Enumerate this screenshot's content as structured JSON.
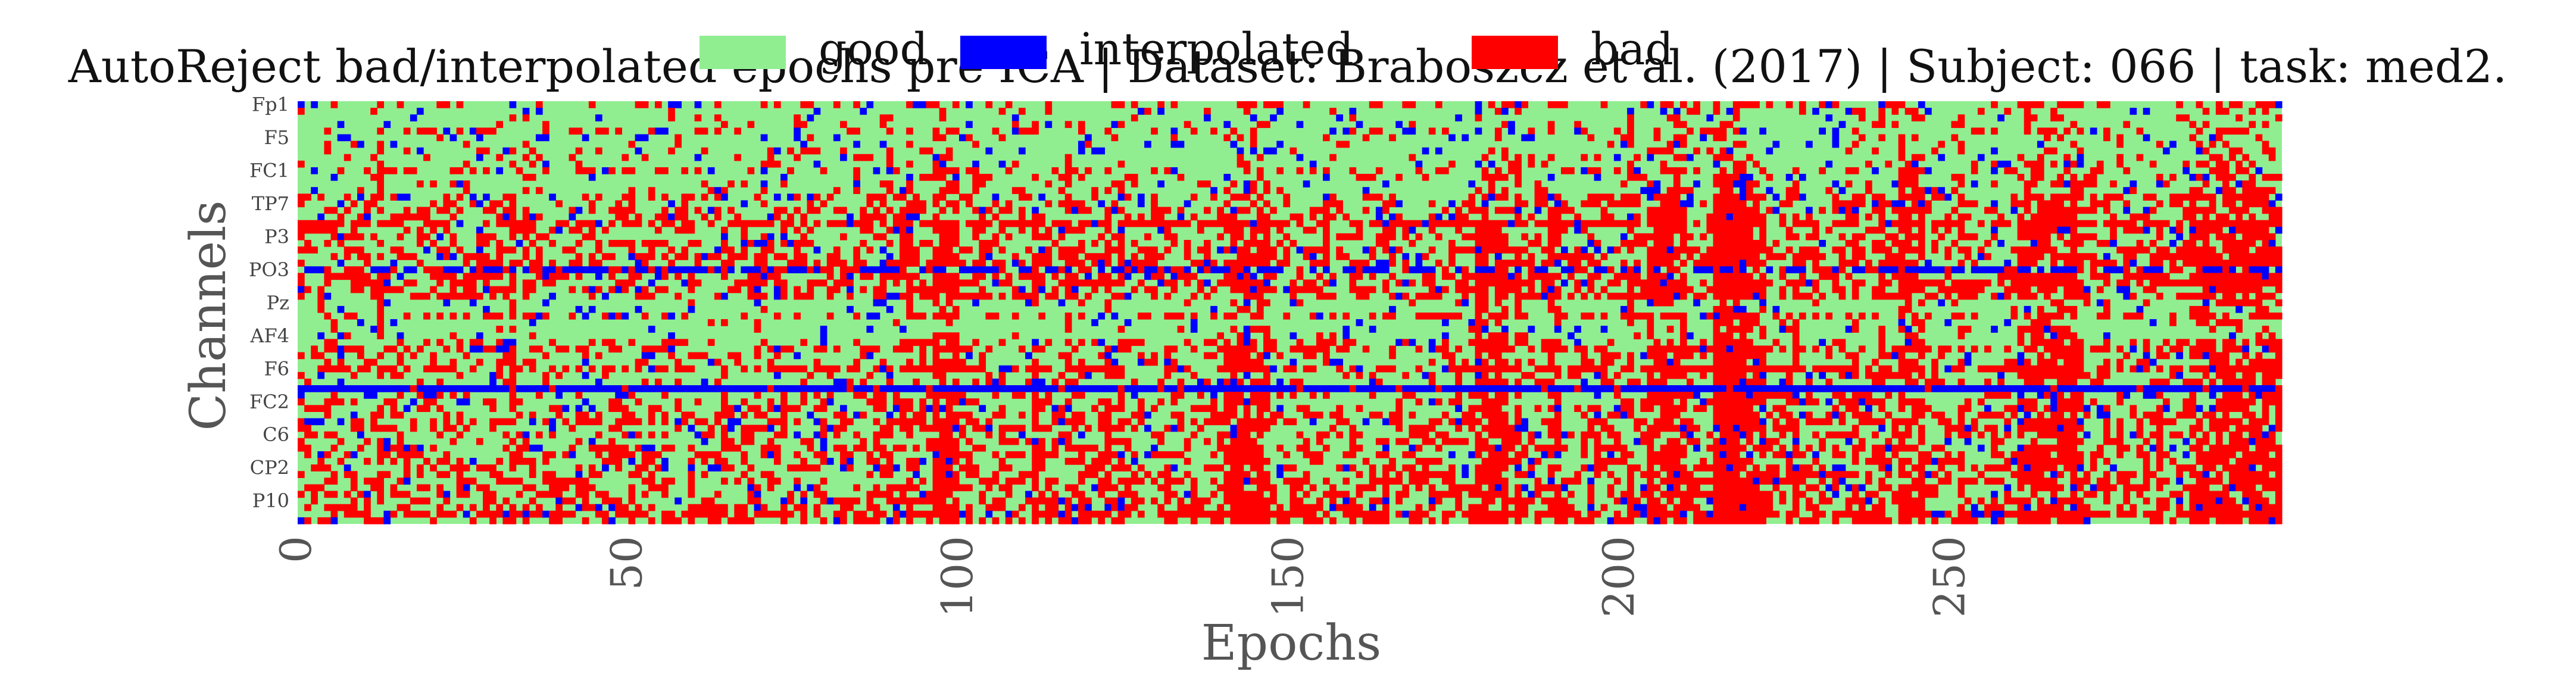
{
  "chart_data": {
    "type": "heatmap",
    "title": "AutoReject bad/interpolated epochs pre ICA | Dataset: Braboszcz et al. (2017) | Subject: 066 | task: med2.",
    "xlabel": "Epochs",
    "ylabel": "Channels",
    "x_range": [
      0,
      300
    ],
    "x_ticks": [
      0,
      50,
      100,
      150,
      200,
      250
    ],
    "y_tick_labels": [
      "Fp1",
      "F5",
      "FC1",
      "TP7",
      "P3",
      "PO3",
      "Pz",
      "AF4",
      "F6",
      "FC2",
      "C6",
      "CP2",
      "P10"
    ],
    "n_channels": 64,
    "n_epochs": 300,
    "legend": {
      "placement": "top-center",
      "entries": [
        {
          "label": "good",
          "color": "#90ee90"
        },
        {
          "label": "interpolated",
          "color": "#0000ff"
        },
        {
          "label": "bad",
          "color": "#ff0000"
        }
      ]
    },
    "category_colors": {
      "good": "#90ee90",
      "interpolated": "#0000ff",
      "bad": "#ff0000"
    },
    "grid": false,
    "dense_bad_epochs": [
      [
        96,
        100
      ],
      [
        140,
        147
      ],
      [
        178,
        183
      ],
      [
        204,
        210
      ],
      [
        214,
        222
      ],
      [
        242,
        246
      ],
      [
        260,
        270
      ],
      [
        286,
        300
      ]
    ],
    "constant_rows": [
      {
        "channel_index": 43,
        "state": "interpolated"
      },
      {
        "channel_index": 25,
        "state": "interpolated_partial"
      }
    ]
  }
}
